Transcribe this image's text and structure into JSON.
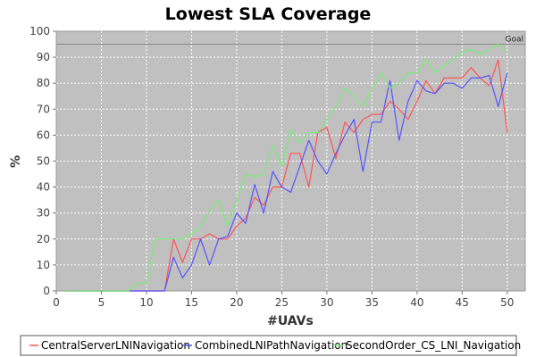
{
  "chart_data": {
    "type": "line",
    "title": "Lowest SLA Coverage",
    "xlabel": "#UAVs",
    "ylabel": "%",
    "xlim": [
      0,
      52
    ],
    "ylim": [
      0,
      100
    ],
    "xticks": [
      0,
      5,
      10,
      15,
      20,
      25,
      30,
      35,
      40,
      45,
      50
    ],
    "yticks": [
      0,
      10,
      20,
      30,
      40,
      50,
      60,
      70,
      80,
      90,
      100
    ],
    "grid": true,
    "legend_position": "bottom",
    "goal": {
      "label": "Goal",
      "value": 95,
      "color": "#888888"
    },
    "x": [
      1,
      2,
      3,
      4,
      5,
      6,
      7,
      8,
      9,
      10,
      11,
      12,
      13,
      14,
      15,
      16,
      17,
      18,
      19,
      20,
      21,
      22,
      23,
      24,
      25,
      26,
      27,
      28,
      29,
      30,
      31,
      32,
      33,
      34,
      35,
      36,
      37,
      38,
      39,
      40,
      41,
      42,
      43,
      44,
      45,
      46,
      47,
      48,
      49,
      50
    ],
    "series": [
      {
        "name": "CentralServerLNINavigation",
        "color": "#ff5555",
        "values": [
          0,
          0,
          0,
          0,
          0,
          0,
          0,
          0,
          0,
          0,
          0,
          0,
          20,
          11,
          20,
          20,
          22,
          20,
          20,
          25,
          28,
          36,
          33,
          40,
          40,
          53,
          53,
          40,
          61,
          63,
          51,
          65,
          61,
          66,
          68,
          68,
          73,
          70,
          66,
          73,
          81,
          76,
          82,
          82,
          82,
          86,
          82,
          79,
          89,
          61
        ]
      },
      {
        "name": "CombinedLNIPathNavigation",
        "color": "#5555ff",
        "values": [
          0,
          0,
          0,
          0,
          0,
          0,
          0,
          0,
          0,
          0,
          0,
          0,
          13,
          5,
          10,
          20,
          10,
          20,
          21,
          30,
          26,
          41,
          30,
          46,
          40,
          38,
          48,
          58,
          50,
          45,
          53,
          60,
          66,
          46,
          65,
          65,
          81,
          58,
          73,
          81,
          77,
          76,
          80,
          80,
          78,
          82,
          82,
          83,
          71,
          84
        ]
      },
      {
        "name": "SecondOrder_CS_LNI_Navigation",
        "color": "#77ee77",
        "values": [
          0,
          0,
          0,
          0,
          0,
          0,
          0,
          0,
          3,
          3,
          20,
          20,
          20,
          20,
          22,
          25,
          31,
          35,
          25,
          35,
          45,
          44,
          45,
          56,
          48,
          62,
          57,
          61,
          61,
          66,
          71,
          78,
          75,
          71,
          78,
          84,
          78,
          80,
          84,
          84,
          89,
          84,
          87,
          89,
          92,
          93,
          91,
          93,
          95,
          92
        ]
      }
    ]
  }
}
